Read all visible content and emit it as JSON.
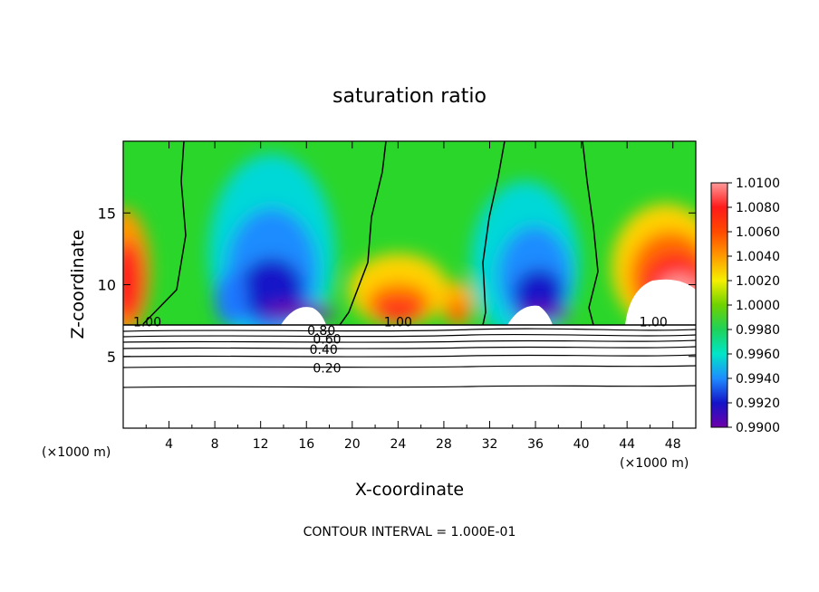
{
  "chart_data": {
    "type": "heatmap",
    "title": "saturation ratio",
    "xlabel": "X-coordinate",
    "ylabel": "Z-coordinate",
    "x_unit_label": "(×1000 m)",
    "y_unit_label": "(×1000 m)",
    "xlim": [
      0,
      50
    ],
    "ylim": [
      0,
      20
    ],
    "x_ticks": [
      "4",
      "8",
      "12",
      "16",
      "20",
      "24",
      "28",
      "32",
      "36",
      "40",
      "44",
      "48"
    ],
    "y_ticks": [
      "5",
      "10",
      "15"
    ],
    "footer": "CONTOUR INTERVAL = 1.000E-01",
    "colorbar": {
      "labels": [
        "1.0100",
        "1.0080",
        "1.0060",
        "1.0040",
        "1.0020",
        "1.0000",
        "0.9980",
        "0.9960",
        "0.9940",
        "0.9920",
        "0.9900"
      ],
      "range": [
        0.99,
        1.01
      ],
      "colors": [
        "#ff8c8c",
        "#ff1a1a",
        "#ff6a00",
        "#ffd200",
        "#a6e400",
        "#1ec81e",
        "#1ee68c",
        "#00d2d2",
        "#1e78ff",
        "#1414c8",
        "#6e00aa"
      ]
    },
    "contour_labels": [
      {
        "text": "1.00",
        "x": 2.1,
        "z": 7.4
      },
      {
        "text": "1.00",
        "x": 24.0,
        "z": 7.4
      },
      {
        "text": "1.00",
        "x": 46.3,
        "z": 7.4
      },
      {
        "text": "0.80",
        "x": 17.3,
        "z": 6.8
      },
      {
        "text": "0.60",
        "x": 17.8,
        "z": 6.2
      },
      {
        "text": "0.40",
        "x": 17.5,
        "z": 5.5
      },
      {
        "text": "0.20",
        "x": 17.8,
        "z": 4.2
      }
    ],
    "contour_levels": [
      0.2,
      0.4,
      0.6,
      0.8,
      0.9,
      1.0
    ],
    "cloud_base_z": 7.3,
    "features": [
      {
        "type": "supersaturated-plume",
        "x_center": 1.2,
        "z_center": 11.5,
        "peak": 1.008
      },
      {
        "type": "subsaturated-plume",
        "x_center": 13.5,
        "z_center": 11.5,
        "min": 0.991
      },
      {
        "type": "supersaturated-plume",
        "x_center": 24.5,
        "z_center": 9.0,
        "peak": 1.006
      },
      {
        "type": "supersaturated-plume",
        "x_center": 29.5,
        "z_center": 8.7,
        "peak": 1.005
      },
      {
        "type": "subsaturated-plume",
        "x_center": 36.5,
        "z_center": 11.0,
        "min": 0.991
      },
      {
        "type": "supersaturated-plume",
        "x_center": 47.5,
        "z_center": 10.0,
        "peak": 1.01
      }
    ]
  }
}
